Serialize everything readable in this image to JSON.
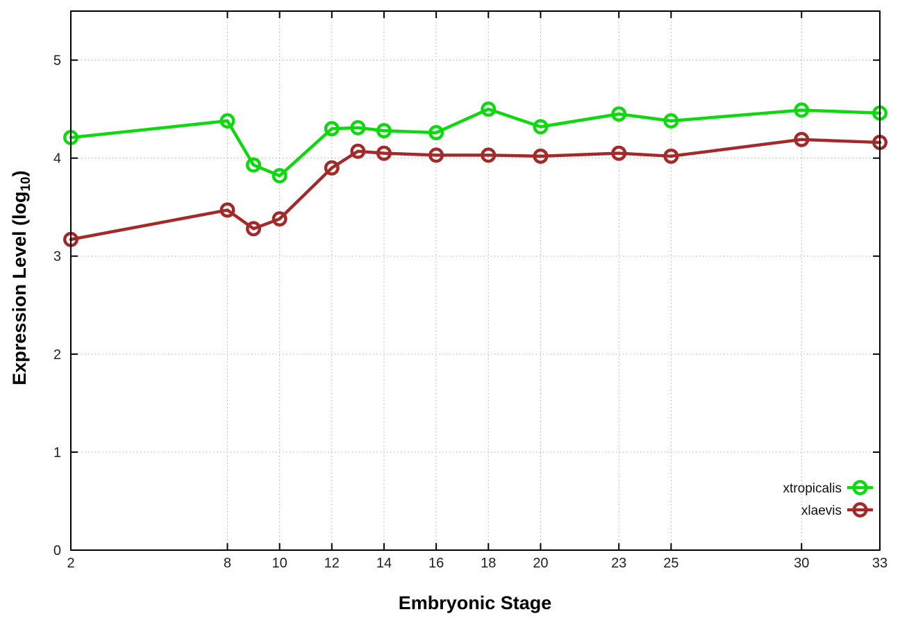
{
  "figure": {
    "background": "#ffffff",
    "ylabel_main": "Expression Level (log",
    "ylabel_sub": "10",
    "ylabel_close": ")"
  },
  "chart_data": {
    "type": "line",
    "title": "",
    "xlabel": "Embryonic Stage",
    "ylabel": "Expression Level (log10)",
    "x": [
      2,
      8,
      9,
      10,
      12,
      13,
      14,
      16,
      18,
      20,
      23,
      25,
      30,
      33
    ],
    "series": [
      {
        "name": "xtropicalis",
        "color": "#0ed80e",
        "marker": "open-circle",
        "values": [
          4.21,
          4.38,
          3.93,
          3.82,
          4.3,
          4.31,
          4.28,
          4.26,
          4.5,
          4.32,
          4.45,
          4.38,
          4.49,
          4.46
        ]
      },
      {
        "name": "xlaevis",
        "color": "#a42a2a",
        "marker": "open-circle",
        "values": [
          3.17,
          3.47,
          3.28,
          3.38,
          3.9,
          4.07,
          4.05,
          4.03,
          4.03,
          4.02,
          4.05,
          4.02,
          4.19,
          4.16
        ]
      }
    ],
    "xticks": [
      2,
      8,
      10,
      12,
      14,
      16,
      18,
      20,
      23,
      25,
      30,
      33
    ],
    "yticks": [
      0,
      1,
      2,
      3,
      4,
      5
    ],
    "xlim": [
      2,
      33
    ],
    "ylim": [
      0,
      5.5
    ],
    "grid": "dotted",
    "legend_position": "inside-bottom-right",
    "style": {
      "grid_color": "#aeaeae",
      "border_color": "#000000",
      "tick_label_color": "#1f1f1f",
      "line_width": 4.5,
      "marker_radius": 8.75,
      "marker_stroke": 4.5
    }
  }
}
